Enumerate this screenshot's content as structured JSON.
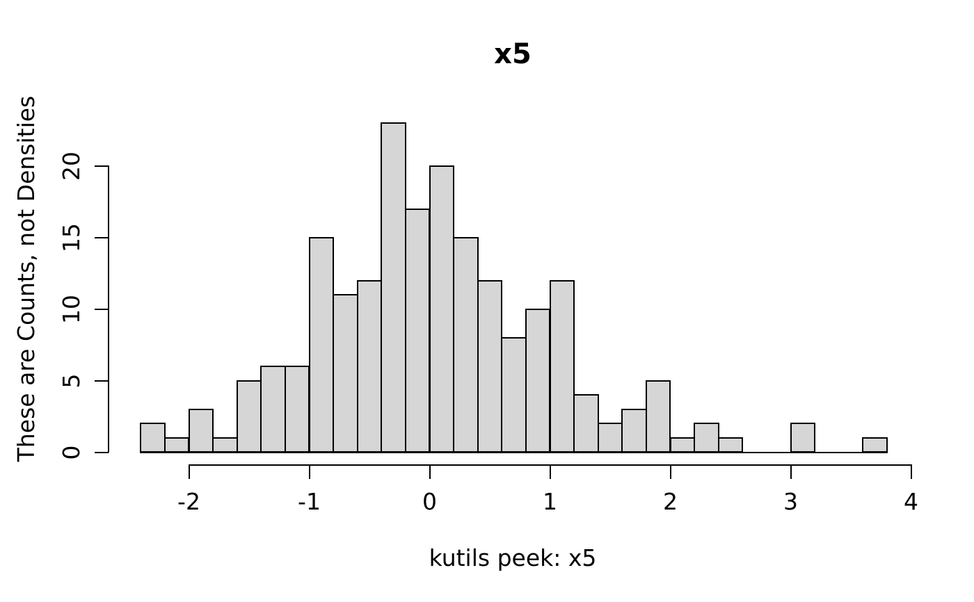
{
  "chart_data": {
    "type": "bar",
    "subtype": "histogram",
    "title": "x5",
    "xlabel": "kutils peek: x5",
    "ylabel": "These are Counts, not Densities",
    "bins": {
      "start": -2.4,
      "width": 0.2
    },
    "counts": [
      2,
      1,
      3,
      1,
      5,
      6,
      6,
      15,
      11,
      12,
      23,
      17,
      20,
      15,
      12,
      8,
      10,
      12,
      4,
      2,
      3,
      5,
      1,
      2,
      1,
      0,
      0,
      2,
      0,
      0,
      1
    ],
    "x_ticks": [
      -2,
      -1,
      0,
      1,
      2,
      3,
      4
    ],
    "y_ticks": [
      0,
      5,
      10,
      15,
      20
    ],
    "xlim": [
      -2.4,
      4
    ],
    "ylim": [
      0,
      23
    ],
    "grid": false,
    "legend": false,
    "bar_fill": "#d6d6d6",
    "bar_border": "#000000",
    "background": "#ffffff",
    "text_color": "#000000"
  }
}
